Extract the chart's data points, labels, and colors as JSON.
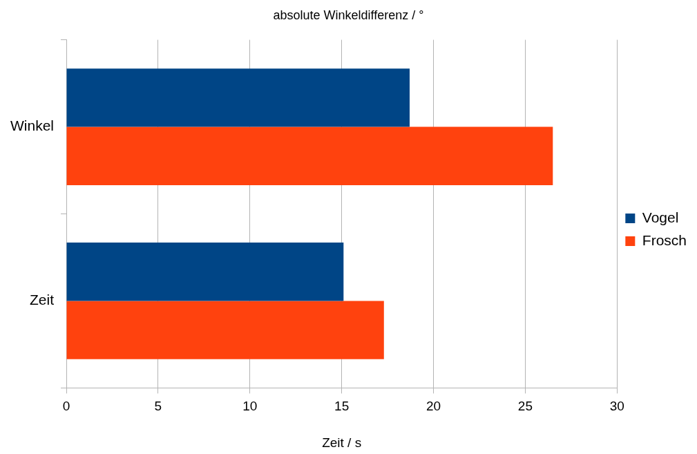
{
  "chart_data": {
    "type": "bar",
    "orientation": "horizontal",
    "title": "absolute Winkeldifferenz / °",
    "xlabel": "Zeit / s",
    "categories": [
      "Winkel",
      "Zeit"
    ],
    "series": [
      {
        "name": "Vogel",
        "color": "#004586",
        "values": [
          18.7,
          15.1
        ]
      },
      {
        "name": "Frosch",
        "color": "#ff420e",
        "values": [
          26.5,
          17.3
        ]
      }
    ],
    "xlim": [
      0,
      30
    ],
    "xticks": [
      0,
      5,
      10,
      15,
      20,
      25,
      30
    ],
    "grid": "x",
    "legend": "right"
  }
}
